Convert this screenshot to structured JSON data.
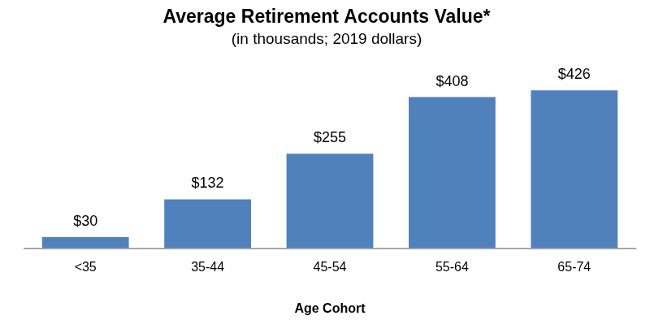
{
  "chart_data": {
    "type": "bar",
    "title": "Average Retirement Accounts Value*",
    "subtitle": "(in thousands; 2019 dollars)",
    "x_label": "Age Cohort",
    "categories": [
      "<35",
      "35-44",
      "45-54",
      "55-64",
      "65-74"
    ],
    "values": [
      30,
      132,
      255,
      408,
      426
    ],
    "value_labels": [
      "$30",
      "$132",
      "$255",
      "$408",
      "$426"
    ],
    "color": "#4f81bd",
    "ylim": [
      0,
      450
    ],
    "grid": false,
    "data_labels": true,
    "tick_labels": "x"
  }
}
